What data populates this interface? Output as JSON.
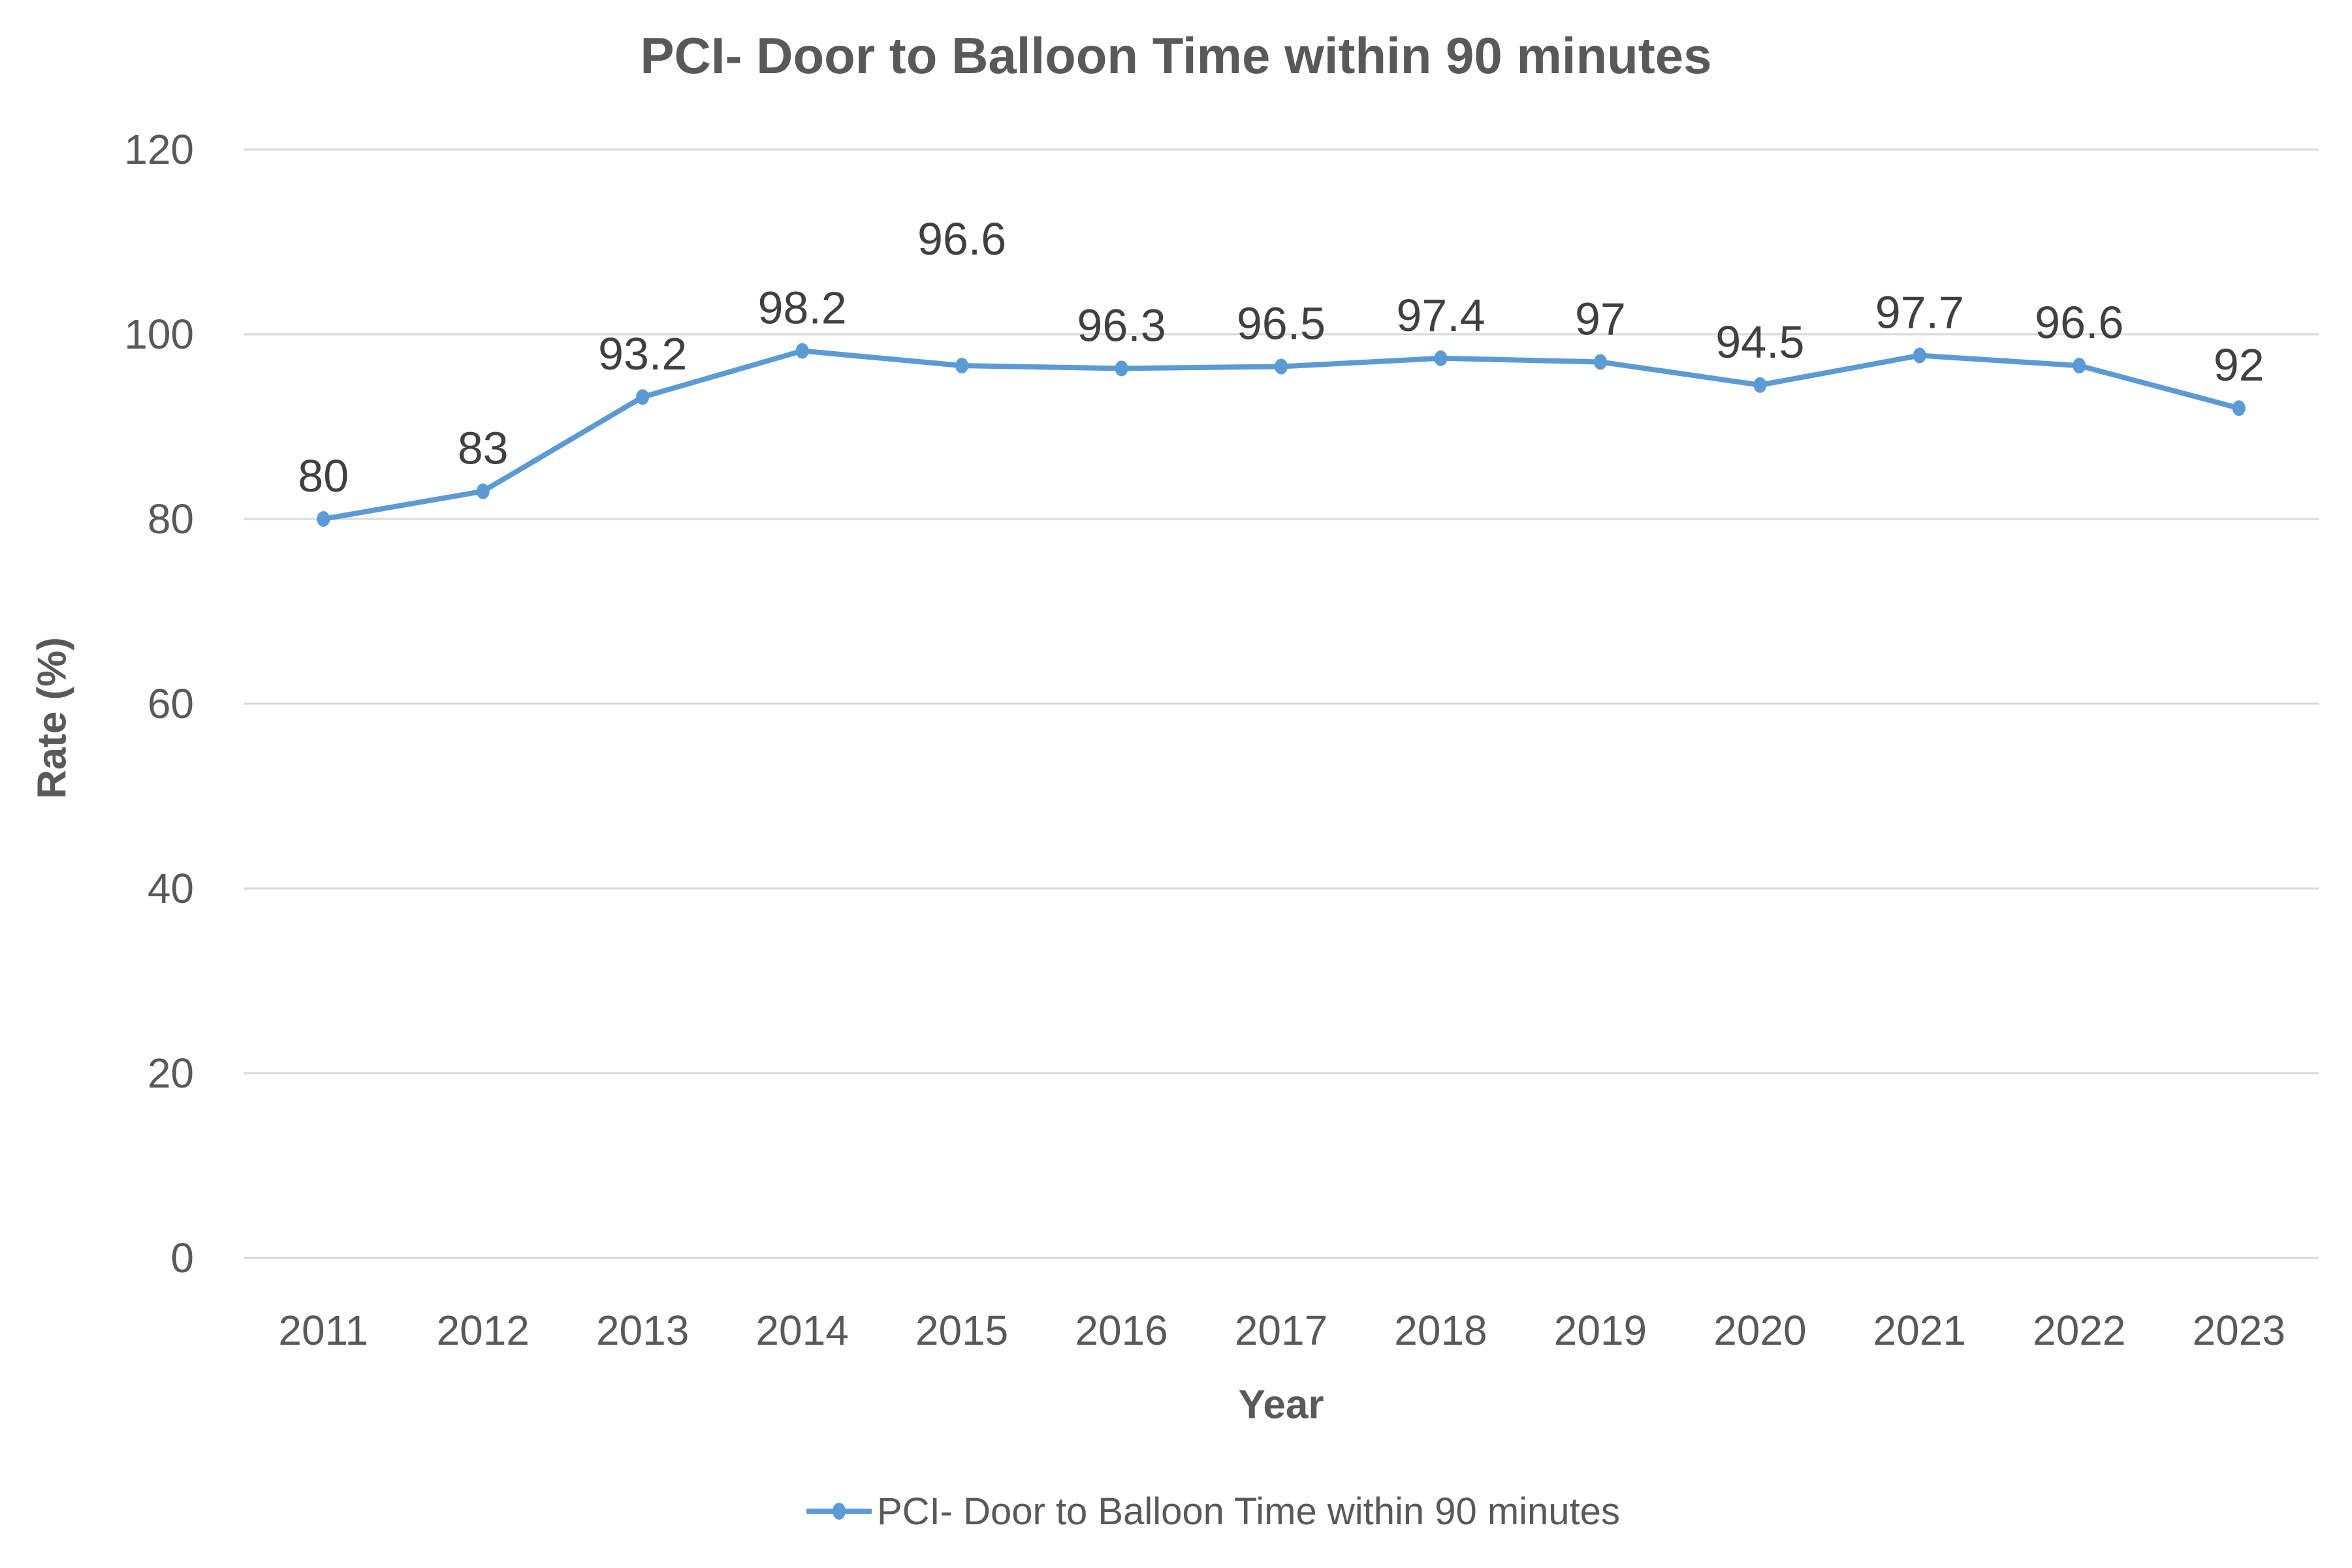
{
  "chart_data": {
    "type": "line",
    "title": "PCI- Door to Balloon Time within 90 minutes",
    "xlabel": "Year",
    "ylabel": "Rate (%)",
    "categories": [
      "2011",
      "2012",
      "2013",
      "2014",
      "2015",
      "2016",
      "2017",
      "2018",
      "2019",
      "2020",
      "2021",
      "2022",
      "2023"
    ],
    "series": [
      {
        "name": "PCI- Door to Balloon Time within 90 minutes",
        "color": "#5B9BD5",
        "values": [
          80,
          83,
          93.2,
          98.2,
          96.6,
          96.3,
          96.5,
          97.4,
          97,
          94.5,
          97.7,
          96.6,
          92
        ],
        "data_labels": [
          "80",
          "83",
          "93.2",
          "98.2",
          "96.6",
          "96.3",
          "96.5",
          "97.4",
          "97",
          "94.5",
          "97.7",
          "96.6",
          "92"
        ]
      }
    ],
    "ylim": [
      0,
      120
    ],
    "yticks": [
      0,
      20,
      40,
      60,
      80,
      100,
      120
    ],
    "grid": true,
    "legend_position": "bottom"
  },
  "colors": {
    "line": "#5B9BD5",
    "grid": "#D9D9D9",
    "axis_text": "#595959",
    "label_text": "#404040"
  }
}
